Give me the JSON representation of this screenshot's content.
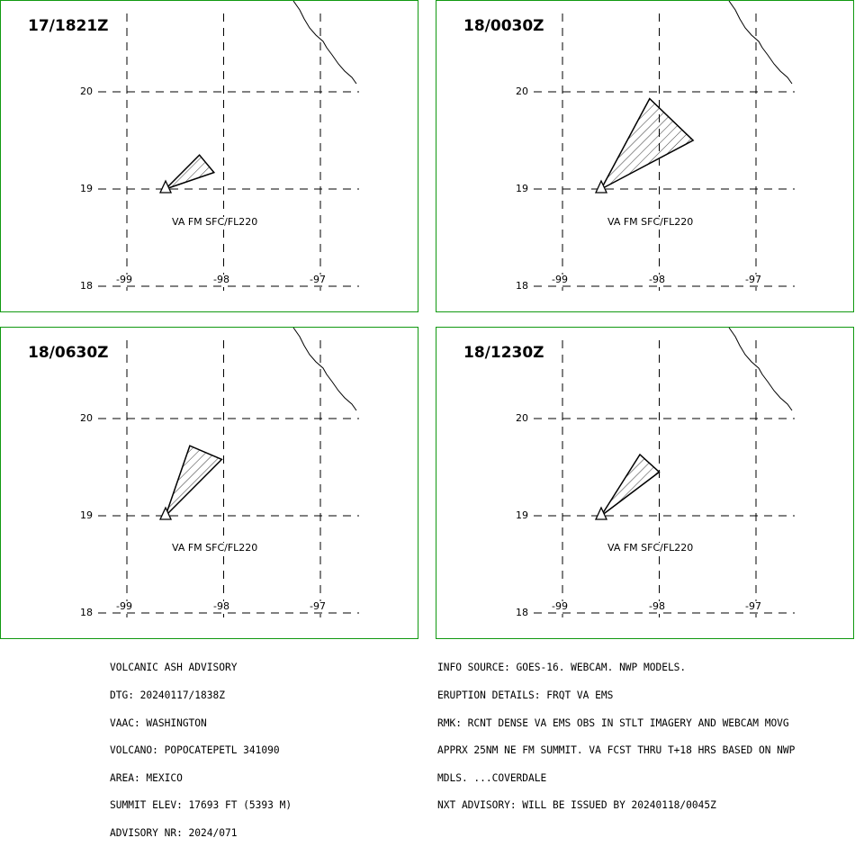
{
  "panels": [
    {
      "time_label": "17/1821Z",
      "va_label": "VA FM SFC/FL220",
      "lat_labels": [
        "20",
        "19",
        "18"
      ],
      "lon_labels": [
        "-99",
        "-98",
        "-97"
      ],
      "ash_polygon": [
        [
          -98.6,
          19.0
        ],
        [
          -98.25,
          19.35
        ],
        [
          -98.1,
          19.17
        ]
      ]
    },
    {
      "time_label": "18/0030Z",
      "va_label": "VA FM SFC/FL220",
      "lat_labels": [
        "20",
        "19",
        "18"
      ],
      "lon_labels": [
        "-99",
        "-98",
        "-97"
      ],
      "ash_polygon": [
        [
          -98.6,
          19.0
        ],
        [
          -98.1,
          19.93
        ],
        [
          -97.65,
          19.5
        ]
      ]
    },
    {
      "time_label": "18/0630Z",
      "va_label": "VA FM SFC/FL220",
      "lat_labels": [
        "20",
        "19",
        "18"
      ],
      "lon_labels": [
        "-99",
        "-98",
        "-97"
      ],
      "ash_polygon": [
        [
          -98.6,
          19.0
        ],
        [
          -98.35,
          19.72
        ],
        [
          -98.02,
          19.58
        ]
      ]
    },
    {
      "time_label": "18/1230Z",
      "va_label": "VA FM SFC/FL220",
      "lat_labels": [
        "20",
        "19",
        "18"
      ],
      "lon_labels": [
        "-99",
        "-98",
        "-97"
      ],
      "ash_polygon": [
        [
          -98.6,
          19.0
        ],
        [
          -98.2,
          19.63
        ],
        [
          -98.0,
          19.45
        ]
      ]
    }
  ],
  "volcano": {
    "lat": 19.0,
    "lon": -98.6
  },
  "advisory_left": [
    "VOLCANIC ASH ADVISORY",
    "DTG: 20240117/1838Z",
    "VAAC: WASHINGTON",
    "VOLCANO: POPOCATEPETL 341090",
    "AREA: MEXICO",
    "SUMMIT ELEV: 17693 FT (5393 M)",
    "ADVISORY NR: 2024/071"
  ],
  "advisory_right": [
    "INFO SOURCE: GOES-16. WEBCAM. NWP MODELS.",
    "ERUPTION DETAILS: FRQT VA EMS",
    "RMK: RCNT DENSE VA EMS OBS IN STLT IMAGERY AND WEBCAM MOVG",
    "APPRX 25NM NE FM SUMMIT. VA FCST THRU T+18 HRS BASED ON NWP",
    "MDLS. ...COVERDALE",
    "NXT ADVISORY: WILL BE ISSUED BY 20240118/0045Z"
  ],
  "colors": {
    "panel_border": "#119911",
    "lines": "#000000"
  }
}
